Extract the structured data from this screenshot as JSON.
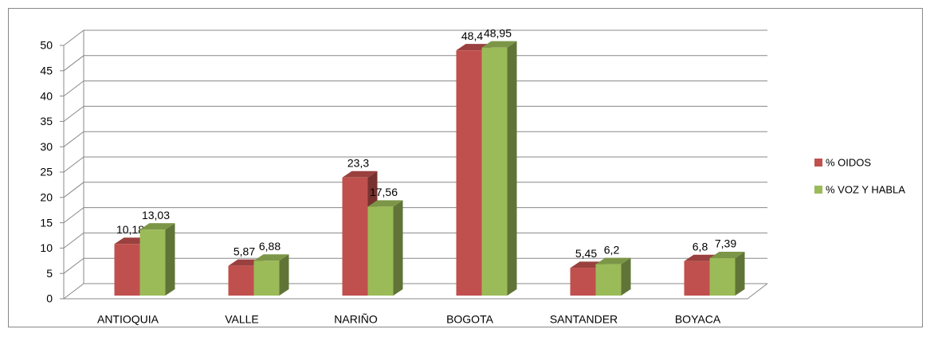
{
  "chart_data": {
    "type": "bar3d",
    "categories": [
      "ANTIOQUIA",
      "VALLE",
      "NARIÑO",
      "BOGOTA",
      "SANTANDER",
      "BOYACA"
    ],
    "series": [
      {
        "name": "% OIDOS",
        "color": "#c0504d",
        "values": [
          10.18,
          5.87,
          23.3,
          48.4,
          5.45,
          6.8
        ],
        "value_labels": [
          "10,18",
          "5,87",
          "23,3",
          "48,4",
          "5,45",
          "6,8"
        ]
      },
      {
        "name": "% VOZ Y HABLA",
        "color": "#9bbb59",
        "values": [
          13.03,
          6.88,
          17.56,
          48.95,
          6.2,
          7.39
        ],
        "value_labels": [
          "13,03",
          "6,88",
          "17,56",
          "48,95",
          "6,2",
          "7,39"
        ]
      }
    ],
    "ylim": [
      0,
      50
    ],
    "yticks": [
      0,
      5,
      10,
      15,
      20,
      25,
      30,
      35,
      40,
      45,
      50
    ],
    "grid": true,
    "legend": "right"
  }
}
